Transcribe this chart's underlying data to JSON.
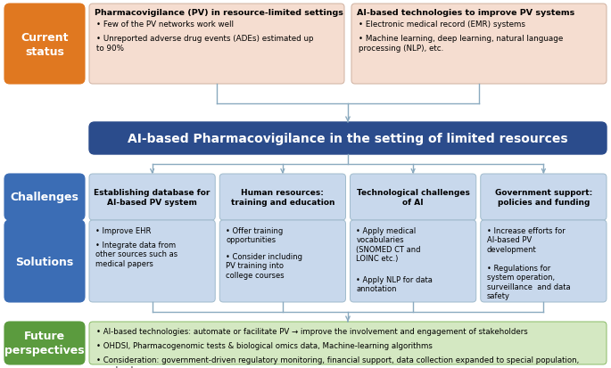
{
  "bg_color": "#ffffff",
  "orange_color": "#E07820",
  "blue_dark_color": "#2B4C8C",
  "blue_medium_color": "#3B6DB5",
  "blue_light_color": "#C8D8EC",
  "green_color": "#5B9B3E",
  "green_light_color": "#D4E8C2",
  "peach_color": "#F5DDD0",
  "peach_edge": "#D4B8A8",
  "arrow_color": "#8AAABF",
  "center_title": "AI-based Pharmacovigilance in the setting of limited resources",
  "top_left_title": "Pharmacovigilance (PV) in resource-limited settings",
  "top_left_bullets": [
    "Few of the PV networks work well",
    "Unreported adverse drug events (ADEs) estimated up\nto 90%"
  ],
  "top_right_title": "AI-based technologies to improve PV systems",
  "top_right_bullets": [
    "Electronic medical record (EMR) systems",
    "Machine learning, deep learning, natural language\nprocessing (NLP), etc."
  ],
  "challenge_titles": [
    "Establishing database for\nAI-based PV system",
    "Human resources:\ntraining and education",
    "Technological challenges\nof AI",
    "Government support:\npolicies and funding"
  ],
  "solution_bullets": [
    [
      "Improve EHR",
      "Integrate data from\nother sources such as\nmedical papers"
    ],
    [
      "Offer training\nopportunities",
      "Consider including\nPV training into\ncollege courses"
    ],
    [
      "Apply medical\nvocabularies\n(SNOMED CT and\nLOINC etc.)",
      "Apply NLP for data\nannotation"
    ],
    [
      "Increase efforts for\nAI-based PV\ndevelopment",
      "Regulations for\nsystem operation,\nsurveillance  and data\nsafety"
    ]
  ],
  "future_bullets": [
    "AI-based technologies: automate or facilitate PV → improve the involvement and engagement of stakeholders",
    "OHDSI, Pharmacogenomic tests & biological omics data, Machine-learning algorithms",
    "Consideration: government-driven regulatory monitoring, financial support, data collection expanded to special population,\npopular drugs, manpower"
  ]
}
